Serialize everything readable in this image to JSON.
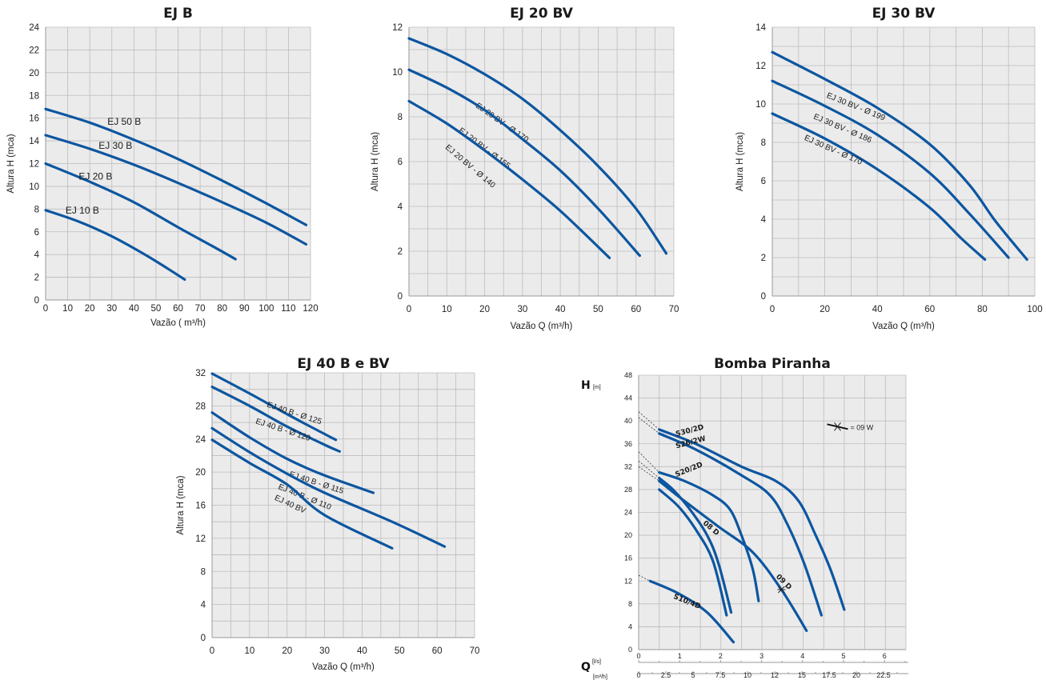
{
  "chart_data": [
    {
      "id": "ej-b",
      "type": "line",
      "title": "EJ B",
      "xlabel": "Vazão ( m³/h)",
      "ylabel": "Altura H (mca)",
      "xlim": [
        0,
        120
      ],
      "ylim": [
        0,
        24
      ],
      "xticks": [
        0,
        10,
        20,
        30,
        40,
        50,
        60,
        70,
        80,
        90,
        100,
        110,
        120
      ],
      "yticks": [
        0,
        2,
        4,
        6,
        8,
        10,
        12,
        14,
        16,
        18,
        20,
        22,
        24
      ],
      "grid_x_step": 10,
      "grid_y_step": 2,
      "series": [
        {
          "name": "EJ 50 B",
          "label_at": [
            28,
            15.4
          ],
          "points": [
            [
              0,
              16.8
            ],
            [
              20,
              15.6
            ],
            [
              40,
              14.1
            ],
            [
              60,
              12.4
            ],
            [
              80,
              10.5
            ],
            [
              100,
              8.5
            ],
            [
              118,
              6.6
            ]
          ]
        },
        {
          "name": "EJ 30 B",
          "label_at": [
            24,
            13.3
          ],
          "points": [
            [
              0,
              14.5
            ],
            [
              20,
              13.3
            ],
            [
              40,
              11.9
            ],
            [
              60,
              10.3
            ],
            [
              80,
              8.6
            ],
            [
              100,
              6.8
            ],
            [
              118,
              4.9
            ]
          ]
        },
        {
          "name": "EJ 20 B",
          "label_at": [
            15,
            10.6
          ],
          "points": [
            [
              0,
              12.0
            ],
            [
              20,
              10.4
            ],
            [
              40,
              8.6
            ],
            [
              60,
              6.4
            ],
            [
              75,
              4.8
            ],
            [
              86,
              3.6
            ]
          ]
        },
        {
          "name": "EJ 10 B",
          "label_at": [
            9,
            7.6
          ],
          "points": [
            [
              0,
              7.9
            ],
            [
              15,
              6.9
            ],
            [
              30,
              5.6
            ],
            [
              45,
              4.0
            ],
            [
              55,
              2.8
            ],
            [
              63,
              1.8
            ]
          ]
        }
      ]
    },
    {
      "id": "ej-20-bv",
      "type": "line",
      "title": "EJ 20 BV",
      "xlabel": "Vazão Q (m³/h)",
      "ylabel": "Altura H (mca)",
      "xlim": [
        0,
        70
      ],
      "ylim": [
        0,
        12
      ],
      "xticks": [
        0,
        10,
        20,
        30,
        40,
        50,
        60,
        70
      ],
      "yticks": [
        0,
        2,
        4,
        6,
        8,
        10,
        12
      ],
      "grid_x_step": 5,
      "grid_y_step": 1,
      "series": [
        {
          "name": "EJ 20 BV - Ø 170",
          "label_at": [
            17.5,
            8.45
          ],
          "angle": 35,
          "points": [
            [
              0,
              11.5
            ],
            [
              10,
              10.8
            ],
            [
              20,
              9.9
            ],
            [
              30,
              8.8
            ],
            [
              40,
              7.4
            ],
            [
              50,
              5.8
            ],
            [
              60,
              3.9
            ],
            [
              68,
              1.9
            ]
          ]
        },
        {
          "name": "EJ 20 BV - Ø 155",
          "label_at": [
            13,
            7.35
          ],
          "angle": 37,
          "points": [
            [
              0,
              10.1
            ],
            [
              10,
              9.3
            ],
            [
              20,
              8.3
            ],
            [
              30,
              7.0
            ],
            [
              40,
              5.6
            ],
            [
              50,
              3.9
            ],
            [
              61,
              1.8
            ]
          ]
        },
        {
          "name": "EJ 20 BV - Ø 140",
          "label_at": [
            9.5,
            6.6
          ],
          "angle": 40,
          "points": [
            [
              0,
              8.7
            ],
            [
              10,
              7.7
            ],
            [
              20,
              6.5
            ],
            [
              30,
              5.2
            ],
            [
              40,
              3.8
            ],
            [
              53,
              1.7
            ]
          ]
        }
      ]
    },
    {
      "id": "ej-30-bv",
      "type": "line",
      "title": "EJ 30 BV",
      "xlabel": "Vazão Q (m³/h)",
      "ylabel": "Altura H (mca)",
      "xlim": [
        0,
        100
      ],
      "ylim": [
        0,
        14
      ],
      "xticks": [
        0,
        20,
        40,
        60,
        80,
        100
      ],
      "yticks": [
        0,
        2,
        4,
        6,
        8,
        10,
        12,
        14
      ],
      "grid_x_step": 10,
      "grid_y_step": 1,
      "series": [
        {
          "name": "EJ 30 BV - Ø 199",
          "label_at": [
            20.5,
            10.35
          ],
          "angle": 22,
          "points": [
            [
              0,
              12.7
            ],
            [
              20,
              11.3
            ],
            [
              40,
              9.8
            ],
            [
              60,
              7.9
            ],
            [
              75,
              5.8
            ],
            [
              85,
              3.9
            ],
            [
              97,
              1.9
            ]
          ]
        },
        {
          "name": "EJ 30 BV - Ø 186",
          "label_at": [
            15.5,
            9.25
          ],
          "angle": 23,
          "points": [
            [
              0,
              11.2
            ],
            [
              20,
              9.9
            ],
            [
              40,
              8.4
            ],
            [
              60,
              6.4
            ],
            [
              75,
              4.3
            ],
            [
              90,
              2.0
            ]
          ]
        },
        {
          "name": "EJ 30 BV - Ø 170",
          "label_at": [
            12,
            8.15
          ],
          "angle": 24,
          "points": [
            [
              0,
              9.5
            ],
            [
              20,
              8.2
            ],
            [
              40,
              6.6
            ],
            [
              60,
              4.6
            ],
            [
              72,
              3.0
            ],
            [
              81,
              1.9
            ]
          ]
        }
      ]
    },
    {
      "id": "ej-40-b-bv",
      "type": "line",
      "title": "EJ 40 B e BV",
      "xlabel": "Vazão Q (m³/h)",
      "ylabel": "Altura H (mca)",
      "xlim": [
        0,
        70
      ],
      "ylim": [
        0,
        32
      ],
      "xticks": [
        0,
        10,
        20,
        30,
        40,
        50,
        60,
        70
      ],
      "yticks": [
        0,
        4,
        8,
        12,
        16,
        20,
        24,
        28,
        32
      ],
      "grid_x_step": 5,
      "grid_y_step": 2,
      "series": [
        {
          "name": "EJ 40 B - Ø 125",
          "label_at": [
            14.5,
            27.9
          ],
          "angle": 18,
          "points": [
            [
              0,
              31.9
            ],
            [
              10,
              29.5
            ],
            [
              20,
              27.0
            ],
            [
              30,
              24.6
            ],
            [
              33,
              23.9
            ]
          ]
        },
        {
          "name": "EJ 40 B - Ø 120",
          "label_at": [
            11.5,
            25.9
          ],
          "angle": 18,
          "points": [
            [
              0,
              30.3
            ],
            [
              10,
              28.0
            ],
            [
              20,
              25.5
            ],
            [
              30,
              23.3
            ],
            [
              34,
              22.5
            ]
          ]
        },
        {
          "name": "EJ 40 B - Ø 115",
          "label_at": [
            20.5,
            19.5
          ],
          "angle": 18,
          "points": [
            [
              0,
              27.2
            ],
            [
              10,
              24.2
            ],
            [
              20,
              21.6
            ],
            [
              30,
              19.6
            ],
            [
              43,
              17.5
            ]
          ]
        },
        {
          "name": "EJ 40 B - Ø 110",
          "label_at": [
            17.5,
            18.0
          ],
          "angle": 22,
          "points": [
            [
              0,
              25.3
            ],
            [
              10,
              22.4
            ],
            [
              20,
              19.8
            ],
            [
              30,
              17.5
            ],
            [
              48,
              14.0
            ],
            [
              62,
              11.0
            ]
          ]
        },
        {
          "name": "EJ 40 BV",
          "label_at": [
            16.5,
            16.7
          ],
          "angle": 25,
          "points": [
            [
              0,
              23.9
            ],
            [
              10,
              21.1
            ],
            [
              20,
              18.5
            ],
            [
              30,
              14.8
            ],
            [
              48,
              10.8
            ]
          ]
        }
      ]
    },
    {
      "id": "bomba-piranha",
      "type": "line",
      "title": "Bomba Piranha",
      "ylabel_main": "H",
      "ylabel_unit": "[m]",
      "xlabel_main": "Q",
      "xlabel_unit_ls": "[l/s]",
      "xlabel_unit_m3h": "[m³/h]",
      "xlim": [
        0,
        23.4
      ],
      "ylim": [
        0,
        48
      ],
      "yticks": [
        0,
        4,
        8,
        12,
        16,
        20,
        24,
        28,
        32,
        36,
        40,
        44,
        48
      ],
      "xticks_ls": [
        "0",
        "1",
        "2",
        "3",
        "4",
        "5",
        "6"
      ],
      "xticks_m3h": [
        "0",
        "2.5",
        "5",
        "7.5",
        "10",
        "12",
        "15",
        "17.5",
        "20",
        "22.5"
      ],
      "grid_x_step": 1.8,
      "grid_y_step": 4,
      "legend": {
        "label": "= 09 W",
        "at": [
          16.5,
          39
        ]
      },
      "series": [
        {
          "name": "S30/2D",
          "label_at": [
            3.3,
            37.3
          ],
          "angle": -15,
          "dash_from": [
            0,
            41.6
          ],
          "points": [
            [
              1.8,
              38.5
            ],
            [
              5,
              36
            ],
            [
              9,
              32
            ],
            [
              12,
              29.5
            ],
            [
              14,
              26
            ],
            [
              15.5,
              20
            ],
            [
              16.8,
              14
            ],
            [
              18,
              7
            ]
          ]
        },
        {
          "name": "S26/2W",
          "label_at": [
            3.3,
            35.2
          ],
          "angle": -15,
          "dash_from": [
            0,
            40.6
          ],
          "points": [
            [
              1.8,
              37.8
            ],
            [
              5,
              35
            ],
            [
              9,
              30.5
            ],
            [
              11.5,
              27
            ],
            [
              13,
              22
            ],
            [
              14.5,
              15
            ],
            [
              16,
              6
            ]
          ]
        },
        {
          "name": "S20/2D",
          "label_at": [
            3.3,
            30.2
          ],
          "angle": -22,
          "dash_from": [
            0,
            34.6
          ],
          "points": [
            [
              1.8,
              31
            ],
            [
              4,
              29.5
            ],
            [
              6.5,
              27
            ],
            [
              8,
              24.5
            ],
            [
              9,
              20
            ],
            [
              10,
              14
            ],
            [
              10.5,
              8.5
            ]
          ]
        },
        {
          "name": "08 D",
          "label_at": [
            5.6,
            22.0
          ],
          "angle": 40,
          "dash_from": [
            0,
            33
          ],
          "points": [
            [
              1.8,
              30
            ],
            [
              3,
              28
            ],
            [
              4.5,
              24.5
            ],
            [
              6,
              20
            ],
            [
              7,
              15
            ],
            [
              8.1,
              6.5
            ]
          ]
        },
        {
          "name": "09 D",
          "label_at": [
            12.0,
            12.7
          ],
          "angle": 45,
          "dash_from": [
            0,
            32
          ],
          "points": [
            [
              1.8,
              29.5
            ],
            [
              4,
              26
            ],
            [
              7,
              21.5
            ],
            [
              10,
              17
            ],
            [
              12.5,
              10.5
            ],
            [
              14.7,
              3.3
            ]
          ]
        },
        {
          "name": "",
          "label_at": null,
          "angle": 0,
          "dash_from": null,
          "points": [
            [
              1.8,
              28
            ],
            [
              3.5,
              25
            ],
            [
              5,
              21
            ],
            [
              6.5,
              15.5
            ],
            [
              7.7,
              6
            ]
          ]
        },
        {
          "name": "S10/4D",
          "label_at": [
            3.0,
            9.0
          ],
          "angle": 22,
          "dash_from": [
            0,
            13
          ],
          "points": [
            [
              1,
              12
            ],
            [
              3.5,
              9.8
            ],
            [
              6,
              6.5
            ],
            [
              8.3,
              1.3
            ]
          ]
        }
      ],
      "marker_point": [
        12.5,
        10.5
      ]
    }
  ]
}
